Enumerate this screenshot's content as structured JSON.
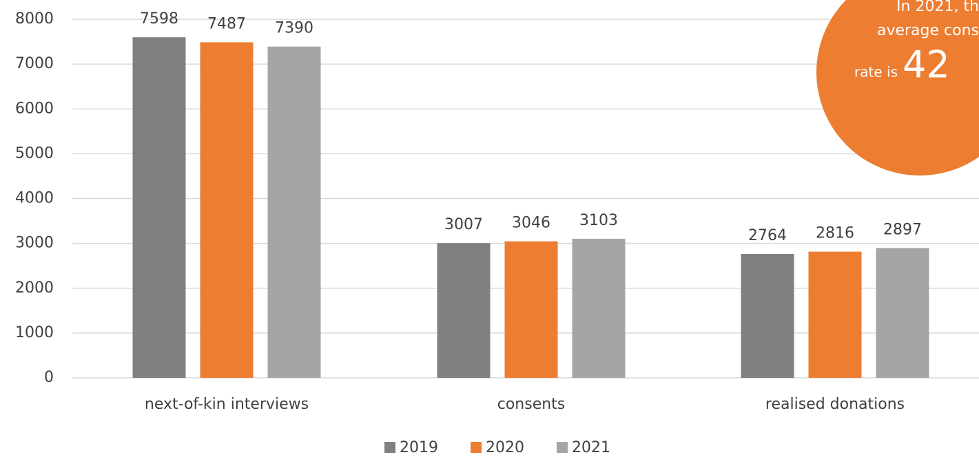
{
  "chart_data": {
    "type": "bar",
    "categories": [
      "next-of-kin interviews",
      "consents",
      "realised donations"
    ],
    "series": [
      {
        "name": "2019",
        "color": "#808080",
        "values": [
          7598,
          3007,
          2764
        ]
      },
      {
        "name": "2020",
        "color": "#ed7d31",
        "values": [
          7487,
          3046,
          2816
        ]
      },
      {
        "name": "2021",
        "color": "#a5a5a5",
        "values": [
          7390,
          3103,
          2897
        ]
      }
    ],
    "ylim": [
      0,
      8000
    ],
    "yticks": [
      0,
      1000,
      2000,
      3000,
      4000,
      5000,
      6000,
      7000,
      8000
    ],
    "grid": true,
    "legend": "bottom",
    "annotation": {
      "color": "#ed7d31",
      "lines": [
        "In 2021, th",
        "average cons",
        "rate is",
        "42"
      ]
    }
  }
}
